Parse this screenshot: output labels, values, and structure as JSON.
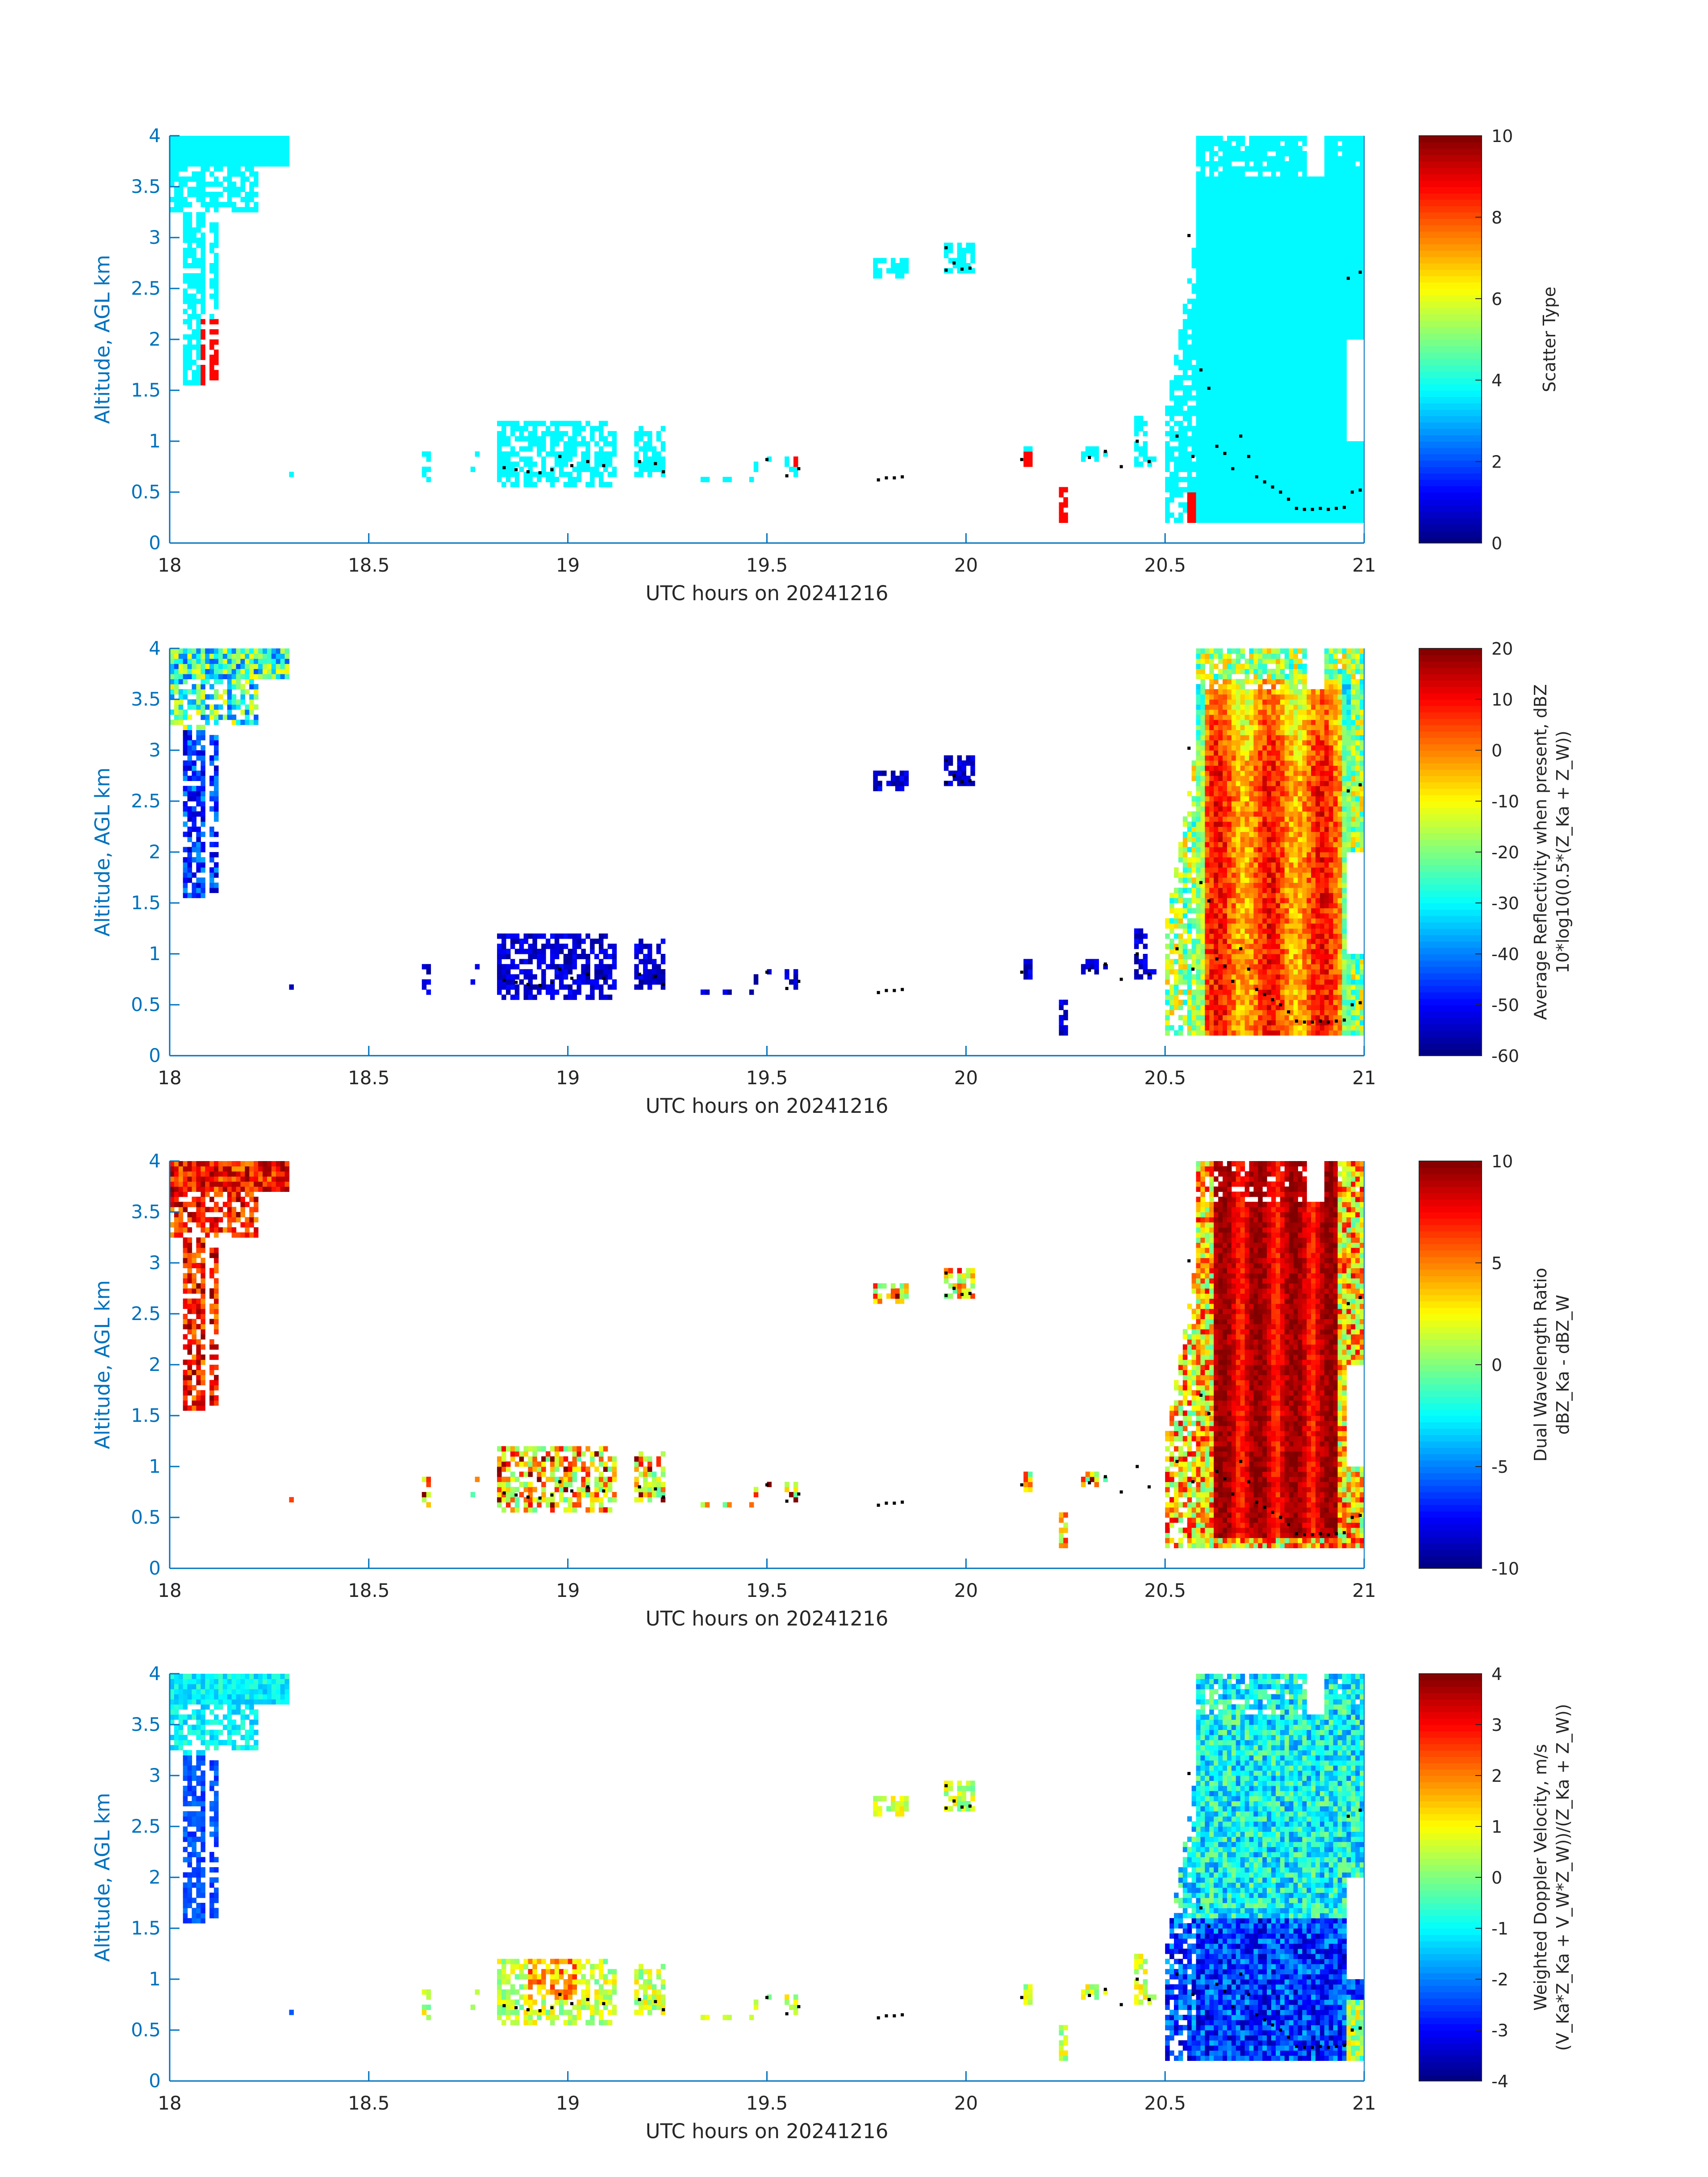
{
  "figure": {
    "date_label": "UTC hours on 20241216",
    "axis_color": "#0072BD",
    "text_color": "#262626",
    "colormap": "jet"
  },
  "chart_data": [
    {
      "type": "heatmap",
      "xlabel": "UTC hours on 20241216",
      "ylabel": "Altitude, AGL km",
      "xlim": [
        18,
        21
      ],
      "ylim": [
        0,
        4
      ],
      "xticks": [
        "18",
        "18.5",
        "19",
        "19.5",
        "20",
        "20.5",
        "21"
      ],
      "yticks": [
        "0",
        "0.5",
        "1",
        "1.5",
        "2",
        "2.5",
        "3",
        "3.5",
        "4"
      ],
      "colorbar": {
        "label_lines": [
          "Scatter Type"
        ],
        "range": [
          0,
          10
        ],
        "ticks": [
          "0",
          "2",
          "4",
          "6",
          "8",
          "10"
        ]
      },
      "field": "scatter_type",
      "dominant_value": 3.7,
      "secondary_value": 8.7
    },
    {
      "type": "heatmap",
      "xlabel": "UTC hours on 20241216",
      "ylabel": "Altitude, AGL km",
      "xlim": [
        18,
        21
      ],
      "ylim": [
        0,
        4
      ],
      "xticks": [
        "18",
        "18.5",
        "19",
        "19.5",
        "20",
        "20.5",
        "21"
      ],
      "yticks": [
        "0",
        "0.5",
        "1",
        "1.5",
        "2",
        "2.5",
        "3",
        "3.5",
        "4"
      ],
      "colorbar": {
        "label_lines": [
          "Average Reflectivity when present, dBZ",
          "10*log10(0.5*(Z_Ka + Z_W))"
        ],
        "range": [
          -60,
          20
        ],
        "ticks": [
          "-60",
          "-50",
          "-40",
          "-30",
          "-20",
          "-10",
          "0",
          "10",
          "20"
        ]
      },
      "field": "reflectivity"
    },
    {
      "type": "heatmap",
      "xlabel": "UTC hours on 20241216",
      "ylabel": "Altitude, AGL km",
      "xlim": [
        18,
        21
      ],
      "ylim": [
        0,
        4
      ],
      "xticks": [
        "18",
        "18.5",
        "19",
        "19.5",
        "20",
        "20.5",
        "21"
      ],
      "yticks": [
        "0",
        "0.5",
        "1",
        "1.5",
        "2",
        "2.5",
        "3",
        "3.5",
        "4"
      ],
      "colorbar": {
        "label_lines": [
          "Dual Wavelength Ratio",
          "dBZ_Ka - dBZ_W"
        ],
        "range": [
          -10,
          10
        ],
        "ticks": [
          "-10",
          "-5",
          "0",
          "5",
          "10"
        ]
      },
      "field": "dwr"
    },
    {
      "type": "heatmap",
      "xlabel": "UTC hours on 20241216",
      "ylabel": "Altitude, AGL km",
      "xlim": [
        18,
        21
      ],
      "ylim": [
        0,
        4
      ],
      "xticks": [
        "18",
        "18.5",
        "19",
        "19.5",
        "20",
        "20.5",
        "21"
      ],
      "yticks": [
        "0",
        "0.5",
        "1",
        "1.5",
        "2",
        "2.5",
        "3",
        "3.5",
        "4"
      ],
      "colorbar": {
        "label_lines": [
          "Weighted Doppler Velocity, m/s",
          "(V_Ka*Z_Ka + V_W*Z_W))/(Z_Ka + Z_W))"
        ],
        "range": [
          -4,
          4
        ],
        "ticks": [
          "-4",
          "-3",
          "-2",
          "-1",
          "0",
          "1",
          "2",
          "3",
          "4"
        ]
      },
      "field": "doppler_velocity"
    }
  ],
  "cloud_base_points": [
    [
      18.84,
      0.74
    ],
    [
      18.87,
      0.72
    ],
    [
      18.9,
      0.7
    ],
    [
      18.93,
      0.69
    ],
    [
      18.96,
      0.72
    ],
    [
      18.98,
      0.85
    ],
    [
      19.01,
      0.76
    ],
    [
      19.05,
      0.8
    ],
    [
      19.09,
      0.76
    ],
    [
      19.18,
      0.8
    ],
    [
      19.22,
      0.78
    ],
    [
      19.24,
      0.7
    ],
    [
      19.5,
      0.82
    ],
    [
      19.55,
      0.66
    ],
    [
      19.58,
      0.73
    ],
    [
      19.78,
      0.62
    ],
    [
      19.8,
      0.64
    ],
    [
      19.82,
      0.64
    ],
    [
      19.84,
      0.65
    ],
    [
      19.95,
      2.9
    ],
    [
      19.95,
      2.68
    ],
    [
      19.97,
      2.75
    ],
    [
      19.99,
      2.69
    ],
    [
      20.01,
      2.7
    ],
    [
      20.14,
      0.82
    ],
    [
      20.31,
      0.84
    ],
    [
      20.35,
      0.9
    ],
    [
      20.39,
      0.75
    ],
    [
      20.43,
      1.0
    ],
    [
      20.46,
      0.8
    ],
    [
      20.53,
      1.05
    ],
    [
      20.56,
      3.02
    ],
    [
      20.57,
      0.85
    ],
    [
      20.59,
      1.7
    ],
    [
      20.61,
      1.52
    ],
    [
      20.63,
      0.95
    ],
    [
      20.65,
      0.88
    ],
    [
      20.67,
      0.73
    ],
    [
      20.69,
      1.05
    ],
    [
      20.71,
      0.85
    ],
    [
      20.73,
      0.65
    ],
    [
      20.75,
      0.6
    ],
    [
      20.77,
      0.55
    ],
    [
      20.79,
      0.5
    ],
    [
      20.81,
      0.43
    ],
    [
      20.83,
      0.34
    ],
    [
      20.85,
      0.33
    ],
    [
      20.87,
      0.33
    ],
    [
      20.89,
      0.34
    ],
    [
      20.91,
      0.33
    ],
    [
      20.93,
      0.34
    ],
    [
      20.95,
      0.35
    ],
    [
      20.97,
      0.5
    ],
    [
      20.99,
      0.52
    ],
    [
      20.96,
      2.6
    ],
    [
      20.99,
      2.66
    ]
  ]
}
